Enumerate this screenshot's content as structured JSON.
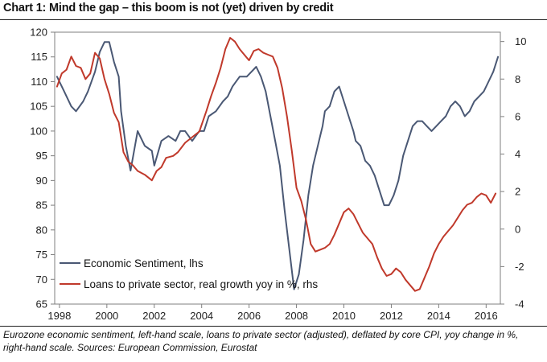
{
  "title": "Chart 1: Mind the gap – this boom is not (yet) driven by credit",
  "caption": "Eurozone economic sentiment, left-hand scale, loans to private sector (adjusted), deflated by core CPI, yoy change in %, right-hand scale. Sources: European Commission, Eurostat",
  "chart_data": {
    "type": "line",
    "title": "Chart 1: Mind the gap – this boom is not (yet) driven by credit",
    "xlabel": "",
    "ylabel": "",
    "xlim": [
      1997.8,
      2016.6
    ],
    "ylim_left": [
      65,
      120
    ],
    "ylim_right": [
      -4,
      10.5
    ],
    "x_tick_labels": [
      "1998",
      "2000",
      "2002",
      "2004",
      "2006",
      "2008",
      "2010",
      "2012",
      "2014",
      "2016"
    ],
    "x_tick_values": [
      1998,
      2000,
      2002,
      2004,
      2006,
      2008,
      2010,
      2012,
      2014,
      2016
    ],
    "y_left_ticks": [
      65,
      70,
      75,
      80,
      85,
      90,
      95,
      100,
      105,
      110,
      115,
      120
    ],
    "y_right_ticks": [
      -4,
      -2,
      0,
      2,
      4,
      6,
      8,
      10
    ],
    "legend_position": "bottom-left",
    "grid": false,
    "series": [
      {
        "name": "Economic Sentiment, lhs",
        "axis": "left",
        "color": "#4a5874",
        "x": [
          1997.9,
          1998.2,
          1998.5,
          1998.7,
          1999.0,
          1999.2,
          1999.5,
          1999.7,
          1999.9,
          2000.1,
          2000.3,
          2000.5,
          2000.6,
          2000.8,
          2001.0,
          2001.3,
          2001.6,
          2001.9,
          2002.0,
          2002.3,
          2002.6,
          2002.9,
          2003.1,
          2003.3,
          2003.6,
          2003.9,
          2004.1,
          2004.3,
          2004.6,
          2004.9,
          2005.1,
          2005.3,
          2005.6,
          2005.9,
          2006.1,
          2006.3,
          2006.5,
          2006.7,
          2006.9,
          2007.1,
          2007.3,
          2007.5,
          2007.7,
          2007.9,
          2008.1,
          2008.3,
          2008.5,
          2008.7,
          2008.9,
          2009.0,
          2009.1,
          2009.2,
          2009.4,
          2009.6,
          2009.8,
          2010.0,
          2010.2,
          2010.4,
          2010.5,
          2010.7,
          2010.9,
          2011.1,
          2011.3,
          2011.5,
          2011.7,
          2011.9,
          2012.1,
          2012.3,
          2012.5,
          2012.7,
          2012.9,
          2013.1,
          2013.3,
          2013.5,
          2013.7,
          2013.9,
          2014.1,
          2014.3,
          2014.5,
          2014.7,
          2014.9,
          2015.1,
          2015.3,
          2015.5,
          2015.7,
          2015.9,
          2016.1,
          2016.3,
          2016.5
        ],
        "values": [
          111,
          108,
          105,
          104,
          106,
          108,
          112,
          116,
          118,
          118,
          114,
          111,
          104,
          97,
          92,
          100,
          97,
          96,
          93,
          98,
          99,
          98,
          100,
          100,
          98,
          100,
          100,
          103,
          104,
          106,
          107,
          109,
          111,
          111,
          112,
          113,
          111,
          108,
          103,
          98,
          93,
          84,
          76,
          68,
          71,
          78,
          87,
          93,
          97,
          99,
          101,
          104,
          105,
          108,
          109,
          106,
          103,
          100,
          98,
          97,
          94,
          93,
          91,
          88,
          85,
          85,
          87,
          90,
          95,
          98,
          101,
          102,
          102,
          101,
          100,
          101,
          102,
          103,
          105,
          106,
          105,
          103,
          104,
          106,
          107,
          108,
          110,
          112,
          115
        ]
      },
      {
        "name": "Loans to private sector, real growth yoy in %, rhs",
        "axis": "right",
        "color": "#c0392b",
        "x": [
          1997.9,
          1998.1,
          1998.3,
          1998.5,
          1998.7,
          1998.9,
          1999.1,
          1999.3,
          1999.5,
          1999.7,
          1999.9,
          2000.1,
          2000.3,
          2000.5,
          2000.7,
          2000.9,
          2001.1,
          2001.3,
          2001.6,
          2001.9,
          2002.1,
          2002.3,
          2002.5,
          2002.8,
          2003.0,
          2003.3,
          2003.6,
          2003.9,
          2004.2,
          2004.4,
          2004.6,
          2004.8,
          2005.0,
          2005.2,
          2005.4,
          2005.6,
          2005.8,
          2006.0,
          2006.2,
          2006.4,
          2006.6,
          2006.8,
          2007.0,
          2007.2,
          2007.4,
          2007.6,
          2007.8,
          2008.0,
          2008.2,
          2008.4,
          2008.6,
          2008.8,
          2009.0,
          2009.2,
          2009.4,
          2009.6,
          2009.8,
          2010.0,
          2010.2,
          2010.4,
          2010.6,
          2010.8,
          2011.0,
          2011.2,
          2011.4,
          2011.6,
          2011.8,
          2012.0,
          2012.2,
          2012.4,
          2012.6,
          2012.8,
          2013.0,
          2013.2,
          2013.4,
          2013.6,
          2013.8,
          2014.0,
          2014.2,
          2014.4,
          2014.6,
          2014.8,
          2015.0,
          2015.2,
          2015.4,
          2015.6,
          2015.8,
          2016.0,
          2016.2,
          2016.4
        ],
        "values": [
          7.6,
          8.3,
          8.5,
          9.2,
          8.7,
          8.6,
          8.0,
          8.3,
          9.4,
          9.1,
          8.0,
          7.2,
          6.2,
          5.7,
          4.1,
          3.6,
          3.4,
          3.1,
          2.9,
          2.6,
          3.1,
          3.3,
          3.8,
          3.9,
          4.1,
          4.6,
          4.9,
          5.2,
          6.3,
          7.1,
          7.8,
          8.6,
          9.6,
          10.2,
          10.0,
          9.6,
          9.3,
          9.0,
          9.5,
          9.6,
          9.4,
          9.3,
          9.2,
          8.6,
          7.5,
          6.0,
          4.2,
          2.2,
          1.5,
          0.5,
          -0.8,
          -1.2,
          -1.1,
          -1.0,
          -0.8,
          -0.3,
          0.3,
          0.9,
          1.1,
          0.8,
          0.3,
          -0.2,
          -0.5,
          -0.8,
          -1.5,
          -2.1,
          -2.5,
          -2.4,
          -2.1,
          -2.3,
          -2.7,
          -3.0,
          -3.3,
          -3.2,
          -2.6,
          -2.0,
          -1.3,
          -0.8,
          -0.4,
          -0.1,
          0.2,
          0.6,
          1.0,
          1.3,
          1.4,
          1.7,
          1.9,
          1.8,
          1.4,
          1.9
        ]
      }
    ]
  }
}
